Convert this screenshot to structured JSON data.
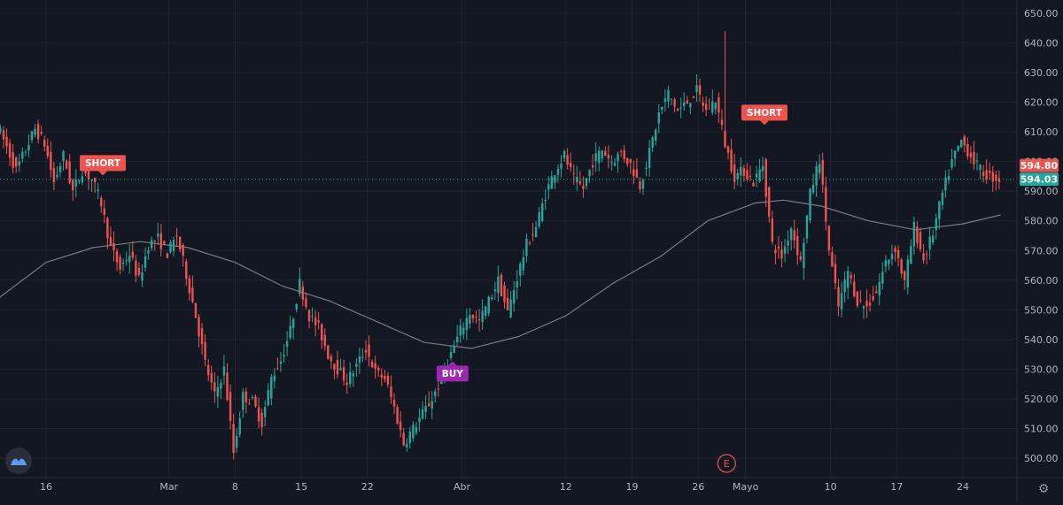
{
  "chart_data": {
    "type": "candlestick",
    "title": "",
    "xlabel": "",
    "ylabel": "",
    "ylim": [
      495,
      652
    ],
    "y_ticks": [
      "650.00",
      "640.00",
      "630.00",
      "620.00",
      "610.00",
      "600.00",
      "590.00",
      "580.00",
      "570.00",
      "560.00",
      "550.00",
      "540.00",
      "530.00",
      "520.00",
      "510.00",
      "500.00"
    ],
    "x_ticks": [
      {
        "label": "16",
        "date": "Feb 16"
      },
      {
        "label": "Mar",
        "date": "Mar 1"
      },
      {
        "label": "8",
        "date": "Mar 8"
      },
      {
        "label": "15",
        "date": "Mar 15"
      },
      {
        "label": "22",
        "date": "Mar 22"
      },
      {
        "label": "Abr",
        "date": "Apr 1"
      },
      {
        "label": "12",
        "date": "Apr 12"
      },
      {
        "label": "19",
        "date": "Apr 19"
      },
      {
        "label": "26",
        "date": "Apr 26"
      },
      {
        "label": "Mayo",
        "date": "May 1"
      },
      {
        "label": "10",
        "date": "May 10"
      },
      {
        "label": "17",
        "date": "May 17"
      },
      {
        "label": "24",
        "date": "May 24"
      }
    ],
    "price_path": [
      [
        "Feb 11",
        612
      ],
      [
        "Feb 12",
        605
      ],
      [
        "Feb 13",
        597
      ],
      [
        "Feb 14",
        604
      ],
      [
        "Feb 15",
        611
      ],
      [
        "Feb 16",
        606
      ],
      [
        "Feb 17",
        593
      ],
      [
        "Feb 18",
        602
      ],
      [
        "Feb 19",
        590
      ],
      [
        "Feb 20",
        597
      ],
      [
        "Feb 21",
        594
      ],
      [
        "Feb 22",
        586
      ],
      [
        "Feb 23",
        571
      ],
      [
        "Feb 24",
        564
      ],
      [
        "Feb 25",
        569
      ],
      [
        "Feb 26",
        560
      ],
      [
        "Feb 27",
        572
      ],
      [
        "Feb 28",
        574
      ],
      [
        "Mar 1",
        569
      ],
      [
        "Mar 2",
        575
      ],
      [
        "Mar 3",
        562
      ],
      [
        "Mar 4",
        548
      ],
      [
        "Mar 5",
        532
      ],
      [
        "Mar 6",
        521
      ],
      [
        "Mar 7",
        530
      ],
      [
        "Mar 8",
        502
      ],
      [
        "Mar 9",
        521
      ],
      [
        "Mar 10",
        519
      ],
      [
        "Mar 11",
        512
      ],
      [
        "Mar 12",
        527
      ],
      [
        "Mar 13",
        533
      ],
      [
        "Mar 14",
        543
      ],
      [
        "Mar 15",
        559
      ],
      [
        "Mar 16",
        548
      ],
      [
        "Mar 17",
        544
      ],
      [
        "Mar 18",
        535
      ],
      [
        "Mar 19",
        530
      ],
      [
        "Mar 20",
        526
      ],
      [
        "Mar 21",
        531
      ],
      [
        "Mar 22",
        537
      ],
      [
        "Mar 23",
        529
      ],
      [
        "Mar 24",
        527
      ],
      [
        "Mar 25",
        517
      ],
      [
        "Mar 26",
        505
      ],
      [
        "Mar 27",
        510
      ],
      [
        "Mar 28",
        515
      ],
      [
        "Mar 29",
        520
      ],
      [
        "Mar 30",
        527
      ],
      [
        "Mar 31",
        535
      ],
      [
        "Apr 1",
        543
      ],
      [
        "Apr 2",
        549
      ],
      [
        "Apr 3",
        546
      ],
      [
        "Apr 4",
        553
      ],
      [
        "Apr 5",
        560
      ],
      [
        "Apr 6",
        549
      ],
      [
        "Apr 7",
        561
      ],
      [
        "Apr 8",
        572
      ],
      [
        "Apr 9",
        578
      ],
      [
        "Apr 10",
        589
      ],
      [
        "Apr 11",
        597
      ],
      [
        "Apr 12",
        602
      ],
      [
        "Apr 13",
        594
      ],
      [
        "Apr 14",
        591
      ],
      [
        "Apr 15",
        600
      ],
      [
        "Apr 16",
        604
      ],
      [
        "Apr 17",
        600
      ],
      [
        "Apr 18",
        603
      ],
      [
        "Apr 19",
        599
      ],
      [
        "Apr 20",
        592
      ],
      [
        "Apr 21",
        603
      ],
      [
        "Apr 22",
        616
      ],
      [
        "Apr 23",
        623
      ],
      [
        "Apr 24",
        617
      ],
      [
        "Apr 25",
        620
      ],
      [
        "Apr 26",
        624
      ],
      [
        "Apr 27",
        617
      ],
      [
        "Apr 28",
        621
      ],
      [
        "Apr 29",
        606
      ],
      [
        "Apr 30",
        595
      ],
      [
        "May 1",
        597
      ],
      [
        "May 2",
        593
      ],
      [
        "May 3",
        599
      ],
      [
        "May 4",
        572
      ],
      [
        "May 5",
        568
      ],
      [
        "May 6",
        578
      ],
      [
        "May 7",
        566
      ],
      [
        "May 8",
        589
      ],
      [
        "May 9",
        601
      ],
      [
        "May 10",
        570
      ],
      [
        "May 11",
        551
      ],
      [
        "May 12",
        563
      ],
      [
        "May 13",
        553
      ],
      [
        "May 14",
        551
      ],
      [
        "May 15",
        556
      ],
      [
        "May 16",
        566
      ],
      [
        "May 17",
        571
      ],
      [
        "May 18",
        559
      ],
      [
        "May 19",
        578
      ],
      [
        "May 20",
        567
      ],
      [
        "May 21",
        576
      ],
      [
        "May 22",
        589
      ],
      [
        "May 23",
        600
      ],
      [
        "May 24",
        607
      ],
      [
        "May 25",
        602
      ],
      [
        "May 26",
        597
      ],
      [
        "May 27",
        595
      ],
      [
        "May 28",
        594
      ]
    ],
    "moving_average": [
      [
        "Feb 11",
        554
      ],
      [
        "Feb 16",
        566
      ],
      [
        "Feb 21",
        571
      ],
      [
        "Feb 26",
        573
      ],
      [
        "Mar 3",
        571
      ],
      [
        "Mar 8",
        566
      ],
      [
        "Mar 13",
        558
      ],
      [
        "Mar 18",
        553
      ],
      [
        "Mar 23",
        546
      ],
      [
        "Mar 28",
        539
      ],
      [
        "Apr 2",
        537
      ],
      [
        "Apr 7",
        541
      ],
      [
        "Apr 12",
        548
      ],
      [
        "Apr 17",
        559
      ],
      [
        "Apr 22",
        568
      ],
      [
        "Apr 27",
        580
      ],
      [
        "May 2",
        586
      ],
      [
        "May 5",
        587
      ],
      [
        "May 9",
        585
      ],
      [
        "May 14",
        580
      ],
      [
        "May 19",
        577
      ],
      [
        "May 24",
        579
      ],
      [
        "May 28",
        582
      ]
    ],
    "signals": [
      {
        "label": "SHORT",
        "date": "Feb 22",
        "price": 595,
        "direction": "down",
        "color": "#ef5350"
      },
      {
        "label": "BUY",
        "date": "Mar 31",
        "price": 533,
        "direction": "up",
        "color": "#9c27b0"
      },
      {
        "label": "SHORT",
        "date": "May 3",
        "price": 612,
        "direction": "down",
        "color": "#ef5350"
      }
    ],
    "high_price_label": "594.80",
    "last_price": 594.03,
    "last_price_label": "594.03",
    "event_marker": {
      "label": "E",
      "date": "Apr 29"
    },
    "colors": {
      "up": "#26a69a",
      "down": "#ef5350",
      "ma": "#787b86",
      "background": "#131722",
      "grid": "#1f2330",
      "axis_text": "#b2b5be",
      "buy": "#9c27b0",
      "short": "#ef5350"
    }
  },
  "ui": {
    "logo_icon": "tradingview-logo-icon",
    "settings_icon": "gear-icon"
  }
}
